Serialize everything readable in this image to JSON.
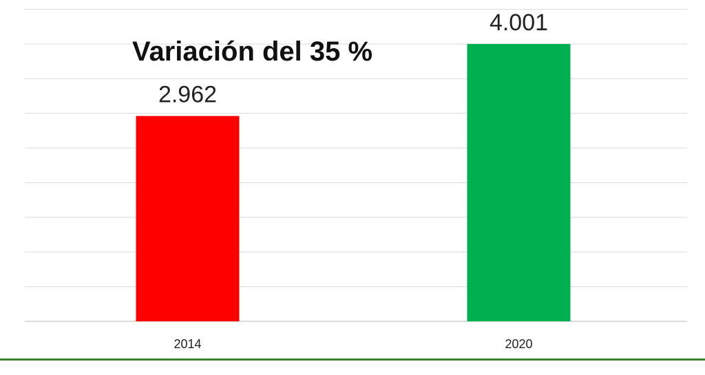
{
  "chart_data": {
    "type": "bar",
    "categories": [
      "2014",
      "2020"
    ],
    "values": [
      2962,
      4001
    ],
    "data_labels": [
      "2.962",
      "4.001"
    ],
    "colors": [
      "#ff0000",
      "#00b050"
    ],
    "annotation": "Variación del 35 %",
    "title": "",
    "xlabel": "",
    "ylabel": "",
    "ylim": [
      0,
      4000
    ],
    "grid": true,
    "legend": "none"
  },
  "accent_rule_color": "#3f7f30",
  "grid_color": "#d9d9d9"
}
